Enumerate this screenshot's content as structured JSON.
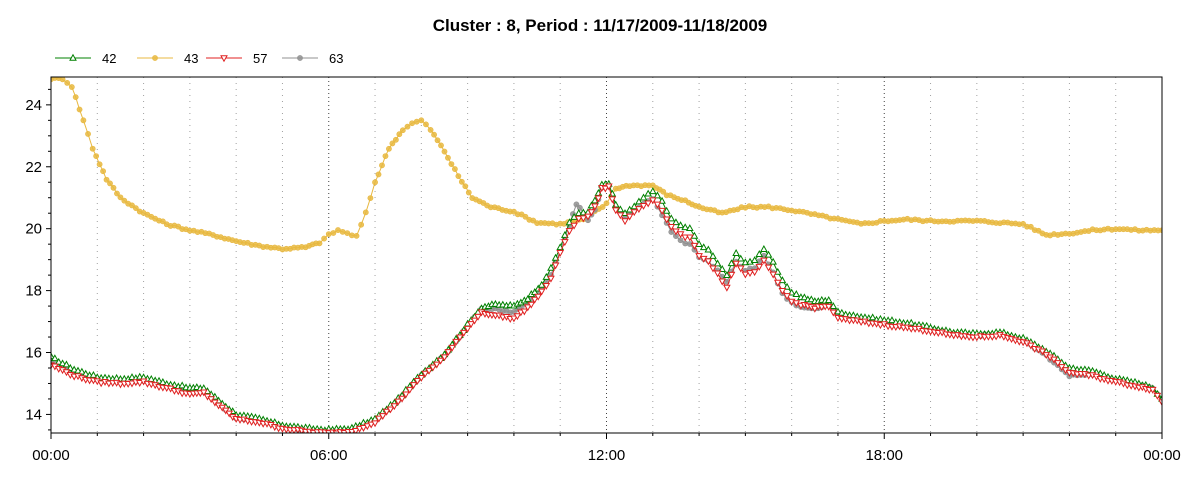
{
  "chart_data": {
    "type": "line",
    "title": "Cluster : 8, Period : 11/17/2009-11/18/2009",
    "xlabel": "",
    "ylabel": "",
    "x_unit": "hours",
    "xlim": [
      0,
      24
    ],
    "ylim": [
      13.4,
      24.9
    ],
    "x_ticks": [
      {
        "value": 0,
        "label": "00:00"
      },
      {
        "value": 6,
        "label": "06:00"
      },
      {
        "value": 12,
        "label": "12:00"
      },
      {
        "value": 18,
        "label": "18:00"
      },
      {
        "value": 24,
        "label": "00:00"
      }
    ],
    "y_ticks": [
      {
        "value": 14,
        "label": "14"
      },
      {
        "value": 16,
        "label": "16"
      },
      {
        "value": 18,
        "label": "18"
      },
      {
        "value": 20,
        "label": "20"
      },
      {
        "value": 22,
        "label": "22"
      },
      {
        "value": 24,
        "label": "24"
      }
    ],
    "grid": "dotted, vertical lines every hour",
    "legend_position": "top-left",
    "series": [
      {
        "name": "42",
        "color": "#008000",
        "marker": "triangle-up",
        "points": [
          [
            0,
            15.85
          ],
          [
            0.5,
            15.45
          ],
          [
            1,
            15.2
          ],
          [
            1.5,
            15.15
          ],
          [
            2,
            15.2
          ],
          [
            2.5,
            15.0
          ],
          [
            3,
            14.85
          ],
          [
            3.3,
            14.85
          ],
          [
            3.7,
            14.35
          ],
          [
            4,
            14.0
          ],
          [
            4.5,
            13.85
          ],
          [
            5,
            13.65
          ],
          [
            5.5,
            13.55
          ],
          [
            6,
            13.5
          ],
          [
            6.5,
            13.55
          ],
          [
            7,
            13.85
          ],
          [
            7.5,
            14.5
          ],
          [
            8,
            15.3
          ],
          [
            8.5,
            15.95
          ],
          [
            9,
            16.9
          ],
          [
            9.3,
            17.45
          ],
          [
            9.6,
            17.55
          ],
          [
            10,
            17.5
          ],
          [
            10.3,
            17.75
          ],
          [
            10.6,
            18.2
          ],
          [
            10.8,
            18.7
          ],
          [
            11,
            19.4
          ],
          [
            11.2,
            20.2
          ],
          [
            11.4,
            20.5
          ],
          [
            11.6,
            20.55
          ],
          [
            11.75,
            20.9
          ],
          [
            11.9,
            21.4
          ],
          [
            12.05,
            21.45
          ],
          [
            12.2,
            20.75
          ],
          [
            12.4,
            20.5
          ],
          [
            12.6,
            20.7
          ],
          [
            12.8,
            21.0
          ],
          [
            13,
            21.2
          ],
          [
            13.2,
            20.9
          ],
          [
            13.4,
            20.3
          ],
          [
            13.6,
            20.1
          ],
          [
            13.8,
            20.0
          ],
          [
            14,
            19.5
          ],
          [
            14.2,
            19.3
          ],
          [
            14.4,
            18.9
          ],
          [
            14.6,
            18.5
          ],
          [
            14.8,
            19.2
          ],
          [
            15,
            18.9
          ],
          [
            15.2,
            19.0
          ],
          [
            15.4,
            19.35
          ],
          [
            15.6,
            18.9
          ],
          [
            15.8,
            18.3
          ],
          [
            16,
            17.95
          ],
          [
            16.2,
            17.8
          ],
          [
            16.5,
            17.65
          ],
          [
            16.8,
            17.7
          ],
          [
            17,
            17.3
          ],
          [
            17.5,
            17.15
          ],
          [
            18,
            17.05
          ],
          [
            18.5,
            16.95
          ],
          [
            19,
            16.8
          ],
          [
            19.5,
            16.65
          ],
          [
            20,
            16.6
          ],
          [
            20.5,
            16.65
          ],
          [
            21,
            16.45
          ],
          [
            21.5,
            16.05
          ],
          [
            22,
            15.5
          ],
          [
            22.5,
            15.4
          ],
          [
            23,
            15.15
          ],
          [
            23.5,
            15.0
          ],
          [
            23.8,
            14.85
          ],
          [
            24,
            14.5
          ]
        ]
      },
      {
        "name": "43",
        "color": "#E8B840",
        "marker": "circle",
        "points": [
          [
            0,
            24.85
          ],
          [
            0.25,
            24.85
          ],
          [
            0.45,
            24.6
          ],
          [
            0.7,
            23.5
          ],
          [
            0.9,
            22.6
          ],
          [
            1.2,
            21.6
          ],
          [
            1.5,
            21.0
          ],
          [
            2,
            20.5
          ],
          [
            2.5,
            20.15
          ],
          [
            3,
            19.95
          ],
          [
            3.5,
            19.8
          ],
          [
            4,
            19.6
          ],
          [
            4.5,
            19.45
          ],
          [
            5,
            19.35
          ],
          [
            5.5,
            19.4
          ],
          [
            5.8,
            19.55
          ],
          [
            6,
            19.8
          ],
          [
            6.2,
            19.95
          ],
          [
            6.4,
            19.85
          ],
          [
            6.6,
            19.75
          ],
          [
            6.8,
            20.5
          ],
          [
            7,
            21.5
          ],
          [
            7.3,
            22.6
          ],
          [
            7.6,
            23.2
          ],
          [
            7.8,
            23.4
          ],
          [
            8,
            23.5
          ],
          [
            8.2,
            23.2
          ],
          [
            8.5,
            22.5
          ],
          [
            8.8,
            21.7
          ],
          [
            9.1,
            21.0
          ],
          [
            9.5,
            20.7
          ],
          [
            10,
            20.55
          ],
          [
            10.5,
            20.2
          ],
          [
            11,
            20.15
          ],
          [
            11.5,
            20.3
          ],
          [
            12,
            20.8
          ],
          [
            12.2,
            21.3
          ],
          [
            12.5,
            21.4
          ],
          [
            13,
            21.4
          ],
          [
            13.3,
            21.1
          ],
          [
            13.7,
            20.9
          ],
          [
            14,
            20.7
          ],
          [
            14.5,
            20.5
          ],
          [
            15,
            20.7
          ],
          [
            15.5,
            20.7
          ],
          [
            16,
            20.6
          ],
          [
            16.5,
            20.45
          ],
          [
            17,
            20.3
          ],
          [
            17.5,
            20.15
          ],
          [
            18,
            20.25
          ],
          [
            18.5,
            20.3
          ],
          [
            19,
            20.25
          ],
          [
            19.5,
            20.25
          ],
          [
            20,
            20.25
          ],
          [
            20.5,
            20.2
          ],
          [
            21,
            20.15
          ],
          [
            21.5,
            19.8
          ],
          [
            22,
            19.85
          ],
          [
            22.5,
            19.95
          ],
          [
            23,
            20.0
          ],
          [
            23.5,
            19.95
          ],
          [
            24,
            19.95
          ]
        ]
      },
      {
        "name": "57",
        "color": "#E02020",
        "marker": "triangle-down",
        "points": [
          [
            0,
            15.6
          ],
          [
            0.5,
            15.25
          ],
          [
            1,
            15.05
          ],
          [
            1.5,
            15.0
          ],
          [
            2,
            15.05
          ],
          [
            2.5,
            14.85
          ],
          [
            3,
            14.65
          ],
          [
            3.3,
            14.7
          ],
          [
            3.7,
            14.2
          ],
          [
            4,
            13.85
          ],
          [
            4.5,
            13.75
          ],
          [
            5,
            13.55
          ],
          [
            5.5,
            13.45
          ],
          [
            6,
            13.4
          ],
          [
            6.5,
            13.45
          ],
          [
            7,
            13.75
          ],
          [
            7.5,
            14.4
          ],
          [
            8,
            15.2
          ],
          [
            8.5,
            15.85
          ],
          [
            9,
            16.8
          ],
          [
            9.3,
            17.3
          ],
          [
            9.6,
            17.2
          ],
          [
            10,
            17.1
          ],
          [
            10.3,
            17.45
          ],
          [
            10.6,
            17.95
          ],
          [
            10.8,
            18.4
          ],
          [
            11,
            19.2
          ],
          [
            11.2,
            19.95
          ],
          [
            11.4,
            20.3
          ],
          [
            11.6,
            20.4
          ],
          [
            11.75,
            20.7
          ],
          [
            11.9,
            21.3
          ],
          [
            12.05,
            21.35
          ],
          [
            12.2,
            20.6
          ],
          [
            12.4,
            20.25
          ],
          [
            12.6,
            20.55
          ],
          [
            12.8,
            20.75
          ],
          [
            13,
            20.95
          ],
          [
            13.2,
            20.6
          ],
          [
            13.4,
            20.05
          ],
          [
            13.6,
            19.8
          ],
          [
            13.8,
            19.7
          ],
          [
            14,
            19.15
          ],
          [
            14.2,
            18.95
          ],
          [
            14.4,
            18.55
          ],
          [
            14.6,
            18.1
          ],
          [
            14.8,
            18.9
          ],
          [
            15,
            18.5
          ],
          [
            15.2,
            18.6
          ],
          [
            15.4,
            18.95
          ],
          [
            15.6,
            18.5
          ],
          [
            15.8,
            18.0
          ],
          [
            16,
            17.65
          ],
          [
            16.2,
            17.55
          ],
          [
            16.5,
            17.45
          ],
          [
            16.8,
            17.5
          ],
          [
            17,
            17.1
          ],
          [
            17.5,
            17.0
          ],
          [
            18,
            16.9
          ],
          [
            18.5,
            16.8
          ],
          [
            19,
            16.7
          ],
          [
            19.5,
            16.55
          ],
          [
            20,
            16.5
          ],
          [
            20.5,
            16.55
          ],
          [
            21,
            16.35
          ],
          [
            21.5,
            15.95
          ],
          [
            22,
            15.35
          ],
          [
            22.5,
            15.25
          ],
          [
            23,
            15.05
          ],
          [
            23.5,
            14.9
          ],
          [
            23.8,
            14.8
          ],
          [
            24,
            14.4
          ]
        ]
      },
      {
        "name": "63",
        "color": "#909090",
        "marker": "circle",
        "points": [
          [
            0,
            15.7
          ],
          [
            0.5,
            15.35
          ],
          [
            1,
            15.1
          ],
          [
            1.5,
            15.05
          ],
          [
            2,
            15.1
          ],
          [
            2.5,
            14.9
          ],
          [
            3,
            14.75
          ],
          [
            3.3,
            14.75
          ],
          [
            3.7,
            14.25
          ],
          [
            4,
            13.9
          ],
          [
            4.5,
            13.8
          ],
          [
            5,
            13.6
          ],
          [
            5.5,
            13.5
          ],
          [
            6,
            13.45
          ],
          [
            6.5,
            13.5
          ],
          [
            7,
            13.8
          ],
          [
            7.5,
            14.45
          ],
          [
            8,
            15.25
          ],
          [
            8.5,
            15.9
          ],
          [
            9,
            16.85
          ],
          [
            9.3,
            17.4
          ],
          [
            9.6,
            17.4
          ],
          [
            10,
            17.3
          ],
          [
            10.3,
            17.6
          ],
          [
            10.6,
            18.05
          ],
          [
            10.8,
            18.5
          ],
          [
            11,
            19.3
          ],
          [
            11.2,
            20.1
          ],
          [
            11.35,
            20.8
          ],
          [
            11.5,
            20.5
          ],
          [
            11.6,
            20.3
          ],
          [
            11.75,
            20.6
          ],
          [
            11.9,
            21.3
          ],
          [
            12.05,
            21.35
          ],
          [
            12.2,
            20.7
          ],
          [
            12.4,
            20.35
          ],
          [
            12.6,
            20.6
          ],
          [
            12.8,
            20.8
          ],
          [
            13,
            20.95
          ],
          [
            13.2,
            20.45
          ],
          [
            13.4,
            19.9
          ],
          [
            13.6,
            19.6
          ],
          [
            13.8,
            19.5
          ],
          [
            14,
            19.1
          ],
          [
            14.2,
            18.95
          ],
          [
            14.4,
            18.65
          ],
          [
            14.6,
            18.3
          ],
          [
            14.8,
            18.95
          ],
          [
            15,
            18.65
          ],
          [
            15.2,
            18.75
          ],
          [
            15.4,
            19.1
          ],
          [
            15.6,
            18.6
          ],
          [
            15.8,
            17.9
          ],
          [
            16,
            17.6
          ],
          [
            16.2,
            17.45
          ],
          [
            16.5,
            17.4
          ],
          [
            16.8,
            17.55
          ],
          [
            17,
            17.2
          ],
          [
            17.5,
            17.05
          ],
          [
            18,
            16.95
          ],
          [
            18.5,
            16.85
          ],
          [
            19,
            16.75
          ],
          [
            19.5,
            16.6
          ],
          [
            20,
            16.55
          ],
          [
            20.5,
            16.6
          ],
          [
            21,
            16.4
          ],
          [
            21.5,
            15.9
          ],
          [
            22,
            15.25
          ],
          [
            22.5,
            15.3
          ],
          [
            23,
            15.1
          ],
          [
            23.5,
            14.95
          ],
          [
            23.8,
            14.85
          ],
          [
            24,
            14.45
          ]
        ]
      }
    ]
  }
}
